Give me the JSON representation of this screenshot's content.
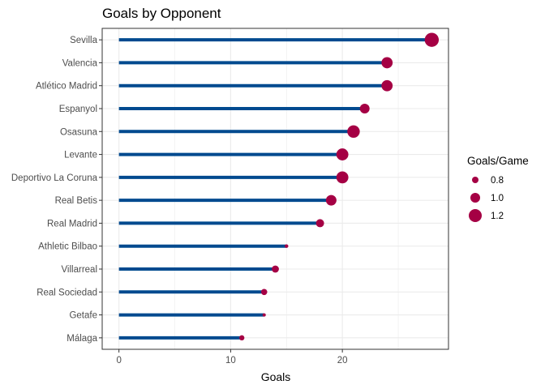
{
  "chart_data": {
    "type": "lollipop",
    "title": "Goals by Opponent",
    "xlabel": "Goals",
    "ylabel": "",
    "xlim": [
      -1.5,
      29.5
    ],
    "x_ticks": [
      0,
      10,
      20
    ],
    "grid": true,
    "categories": [
      "Sevilla",
      "Valencia",
      "Atlético Madrid",
      "Espanyol",
      "Osasuna",
      "Levante",
      "Deportivo La Coruna",
      "Real Betis",
      "Real Madrid",
      "Athletic Bilbao",
      "Villarreal",
      "Real Sociedad",
      "Getafe",
      "Málaga"
    ],
    "values": [
      28,
      24,
      24,
      22,
      21,
      20,
      20,
      19,
      18,
      15,
      14,
      13,
      13,
      11
    ],
    "goals_per_game": [
      1.27,
      1.09,
      1.09,
      1.0,
      1.17,
      1.14,
      1.14,
      1.05,
      0.9,
      0.62,
      0.84,
      0.78,
      0.6,
      0.72
    ],
    "size_legend": {
      "title": "Goals/Game",
      "placement": "right",
      "entries": [
        {
          "label": "0.8",
          "value": 0.8
        },
        {
          "label": "1.0",
          "value": 1.0
        },
        {
          "label": "1.2",
          "value": 1.2
        }
      ]
    },
    "colors": {
      "segment": "#004a8f",
      "point": "#a50044",
      "grid": "#ebebeb",
      "panel_border": "#333333"
    }
  }
}
